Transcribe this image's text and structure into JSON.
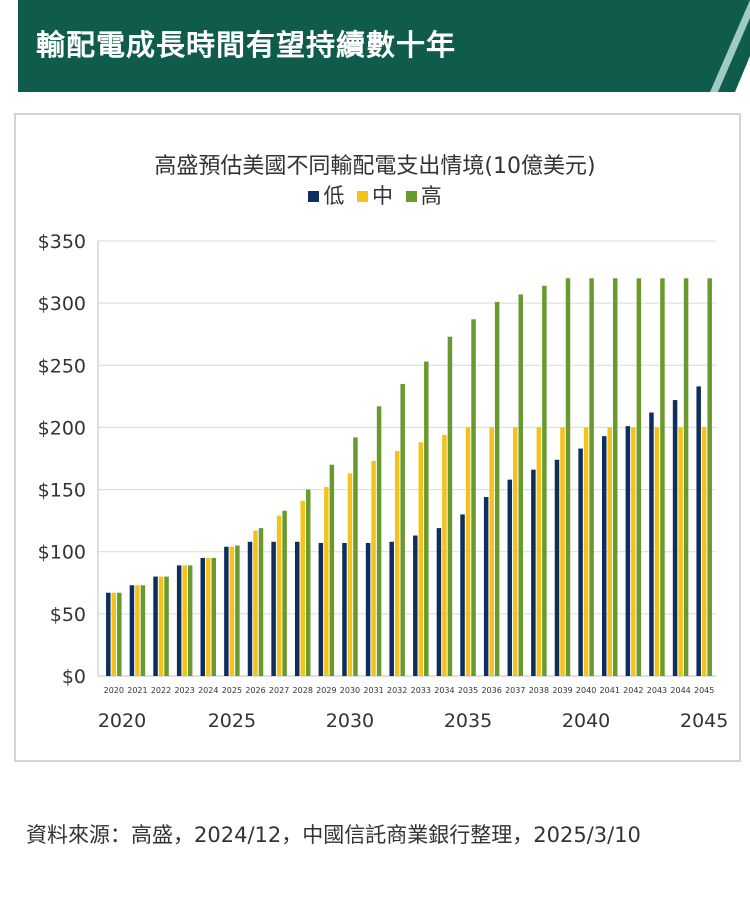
{
  "header": {
    "title": "輸配電成長時間有望持續數十年"
  },
  "colors": {
    "banner": "#0f5c4c",
    "stripe": "#9fcbc6",
    "low": "#0e2f5e",
    "mid": "#f4c21b",
    "high": "#6a9a2e"
  },
  "chart_data": {
    "type": "bar",
    "title": "高盛預估美國不同輸配電支出情境(10億美元)",
    "legend_placement": "top-center",
    "grid": true,
    "ylim": [
      0,
      350
    ],
    "y_ticks": [
      "$0",
      "$50",
      "$100",
      "$150",
      "$200",
      "$250",
      "$300",
      "$350"
    ],
    "y_tick_values": [
      0,
      50,
      100,
      150,
      200,
      250,
      300,
      350
    ],
    "categories": [
      "2020",
      "2021",
      "2022",
      "2023",
      "2024",
      "2025",
      "2026",
      "2027",
      "2028",
      "2029",
      "2030",
      "2031",
      "2032",
      "2033",
      "2034",
      "2035",
      "2036",
      "2037",
      "2038",
      "2039",
      "2040",
      "2041",
      "2042",
      "2043",
      "2044",
      "2045"
    ],
    "major_x_labels": [
      "2020",
      "2025",
      "2030",
      "2035",
      "2040",
      "2045"
    ],
    "series": [
      {
        "name": "低",
        "values": [
          67,
          73,
          80,
          89,
          95,
          104,
          108,
          108,
          108,
          107,
          107,
          107,
          108,
          113,
          119,
          130,
          144,
          158,
          166,
          174,
          183,
          193,
          201,
          212,
          222,
          233
        ]
      },
      {
        "name": "中",
        "values": [
          67,
          73,
          80,
          89,
          95,
          104,
          117,
          129,
          141,
          152,
          163,
          173,
          181,
          188,
          194,
          200,
          200,
          200,
          200,
          200,
          200,
          200,
          200,
          200,
          200,
          200
        ]
      },
      {
        "name": "高",
        "values": [
          67,
          73,
          80,
          89,
          95,
          105,
          119,
          133,
          150,
          170,
          192,
          217,
          235,
          253,
          273,
          287,
          301,
          307,
          314,
          320,
          320,
          320,
          320,
          320,
          320,
          320
        ]
      }
    ]
  },
  "source": "資料來源：高盛，2024/12，中國信託商業銀行整理，2025/3/10"
}
